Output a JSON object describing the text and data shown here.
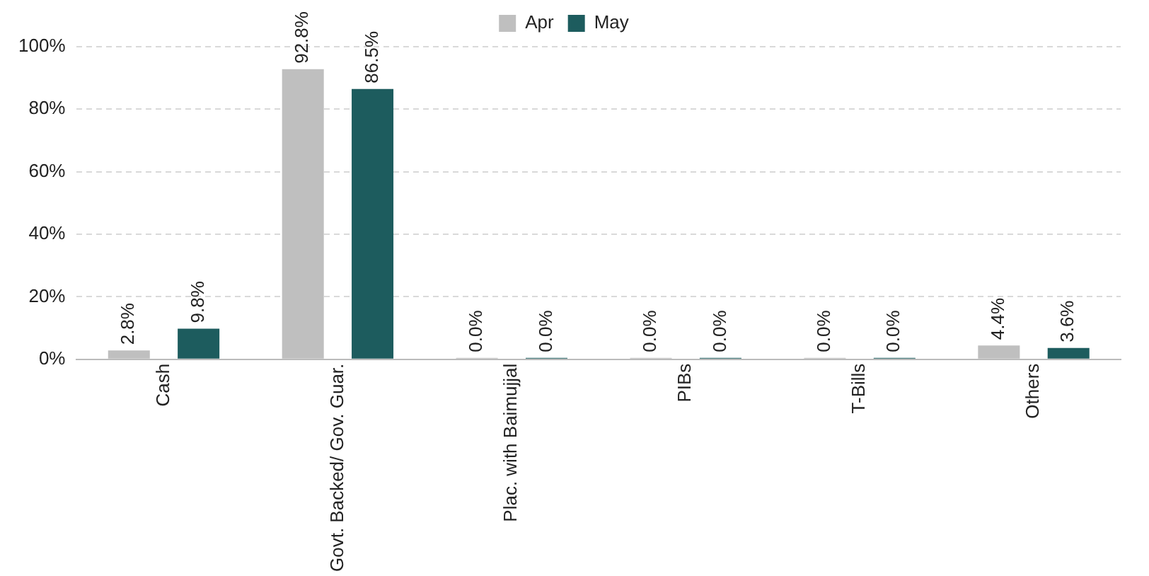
{
  "chart_data": {
    "type": "bar",
    "categories": [
      "Cash",
      "Govt. Backed/ Gov. Guar.",
      "Plac. with Baimujjal",
      "PIBs",
      "T-Bills",
      "Others"
    ],
    "series": [
      {
        "name": "Apr",
        "color": "#bfbfbf",
        "values": [
          2.8,
          92.8,
          0,
          0,
          0,
          4.4
        ],
        "value_labels": [
          "2.8%",
          "92.8%",
          "0.0%",
          "0.0%",
          "0.0%",
          "4.4%"
        ]
      },
      {
        "name": "May",
        "color": "#1d5c5e",
        "values": [
          9.8,
          86.5,
          0,
          0,
          0,
          3.6
        ],
        "value_labels": [
          "9.8%",
          "86.5%",
          "0.0%",
          "0.0%",
          "0.0%",
          "3.6%"
        ]
      }
    ],
    "ylim": [
      0,
      100
    ],
    "yticks": [
      {
        "value": 0,
        "label": "0%"
      },
      {
        "value": 20,
        "label": "20%"
      },
      {
        "value": 40,
        "label": "40%"
      },
      {
        "value": 60,
        "label": "60%"
      },
      {
        "value": 80,
        "label": "80%"
      },
      {
        "value": 100,
        "label": "100%"
      }
    ],
    "grid": "y",
    "legend": "top"
  }
}
